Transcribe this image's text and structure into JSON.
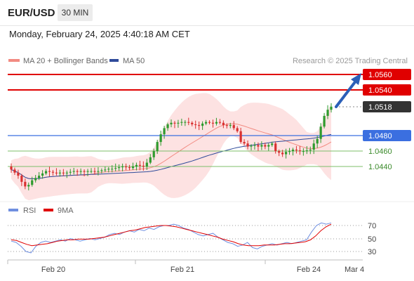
{
  "header": {
    "symbol": "EUR/USD",
    "timeframe": "30 MIN",
    "datetime": "Monday, February 24, 2025 4:40:18 AM CET"
  },
  "legend": {
    "items": [
      {
        "label": "MA 20 + Bollinger Bands",
        "color": "#f28b82"
      },
      {
        "label": "MA 50",
        "color": "#2f4b9a"
      }
    ],
    "credit": "Research © 2025 Trading Central"
  },
  "price_labels": {
    "r2": "1.0560",
    "r1": "1.0540",
    "last": "1.0518",
    "pivot": "1.0480",
    "s1": "1.0460",
    "s2": "1.0440"
  },
  "rsi_legend": {
    "rsi": "RSI",
    "ma9": "9MA"
  },
  "rsi_ticks": [
    "70",
    "50",
    "30"
  ],
  "x_ticks": [
    "Feb 20",
    "Feb 21",
    "Feb 24",
    "Mar 4"
  ],
  "colors": {
    "resistance": "#e00000",
    "pivot": "#3b6fe0",
    "support": "#7cbf6a",
    "last_price": "#333333",
    "up_candle": "#2e9b2e",
    "down_candle": "#d93030",
    "bollinger_fill": "#fde2e2",
    "ma20": "#f28b82",
    "ma50": "#2f4b9a",
    "rsi_line": "#6f8fe0",
    "rsi_ma": "#e00000",
    "arrow": "#2b5fb8"
  },
  "chart_data": {
    "type": "candlestick",
    "price_levels": {
      "resistance": [
        1.056,
        1.054
      ],
      "last": 1.0518,
      "pivot": 1.048,
      "support": [
        1.046,
        1.044
      ]
    },
    "close_series": [
      1.0436,
      1.0432,
      1.0428,
      1.042,
      1.0414,
      1.0416,
      1.0422,
      1.0425,
      1.0428,
      1.0431,
      1.0434,
      1.0433,
      1.0432,
      1.0431,
      1.0432,
      1.0431,
      1.0432,
      1.0433,
      1.0434,
      1.0433,
      1.0434,
      1.0433,
      1.0434,
      1.0434,
      1.0433,
      1.0434,
      1.0435,
      1.0436,
      1.0437,
      1.0437,
      1.0438,
      1.0439,
      1.044,
      1.0439,
      1.0438,
      1.044,
      1.0442,
      1.0441,
      1.044,
      1.0445,
      1.0452,
      1.046,
      1.0472,
      1.0482,
      1.049,
      1.0495,
      1.0497,
      1.0496,
      1.0497,
      1.0498,
      1.0498,
      1.0497,
      1.0495,
      1.0494,
      1.0493,
      1.0496,
      1.0498,
      1.0497,
      1.0496,
      1.0498,
      1.0497,
      1.0494,
      1.0493,
      1.0494,
      1.049,
      1.0486,
      1.0472,
      1.047,
      1.0466,
      1.0467,
      1.0468,
      1.0466,
      1.0468,
      1.0466,
      1.0468,
      1.047,
      1.046,
      1.0458,
      1.0456,
      1.0459,
      1.046,
      1.0462,
      1.0461,
      1.046,
      1.046,
      1.0461,
      1.0462,
      1.047,
      1.0476,
      1.0492,
      1.0506,
      1.0514,
      1.0518
    ],
    "rsi": [
      46,
      44,
      38,
      30,
      28,
      38,
      44,
      46,
      44,
      46,
      48,
      46,
      50,
      48,
      46,
      48,
      50,
      48,
      50,
      52,
      56,
      58,
      56,
      60,
      62,
      60,
      64,
      62,
      66,
      64,
      68,
      70,
      70,
      72,
      70,
      66,
      64,
      60,
      56,
      54,
      56,
      58,
      52,
      48,
      44,
      42,
      38,
      40,
      44,
      36,
      34,
      38,
      40,
      42,
      40,
      42,
      44,
      42,
      44,
      46,
      48,
      60,
      70,
      74,
      72,
      74
    ],
    "rsi_ma": [
      48,
      47,
      44,
      41,
      39,
      40,
      41,
      42,
      44,
      46,
      47,
      48,
      48,
      49,
      49,
      49,
      50,
      51,
      52,
      54,
      56,
      58,
      60,
      62,
      63,
      65,
      67,
      68,
      69,
      70,
      70,
      69,
      68,
      66,
      64,
      62,
      60,
      58,
      56,
      54,
      52,
      49,
      47,
      45,
      42,
      40,
      39,
      39,
      39,
      40,
      40,
      40,
      41,
      42,
      42,
      43,
      44,
      45,
      48,
      54,
      62,
      68,
      72
    ],
    "rsi_levels": [
      70,
      50,
      30
    ],
    "x_labels": [
      "Feb 20",
      "Feb 21",
      "Feb 24",
      "Mar 4"
    ]
  }
}
